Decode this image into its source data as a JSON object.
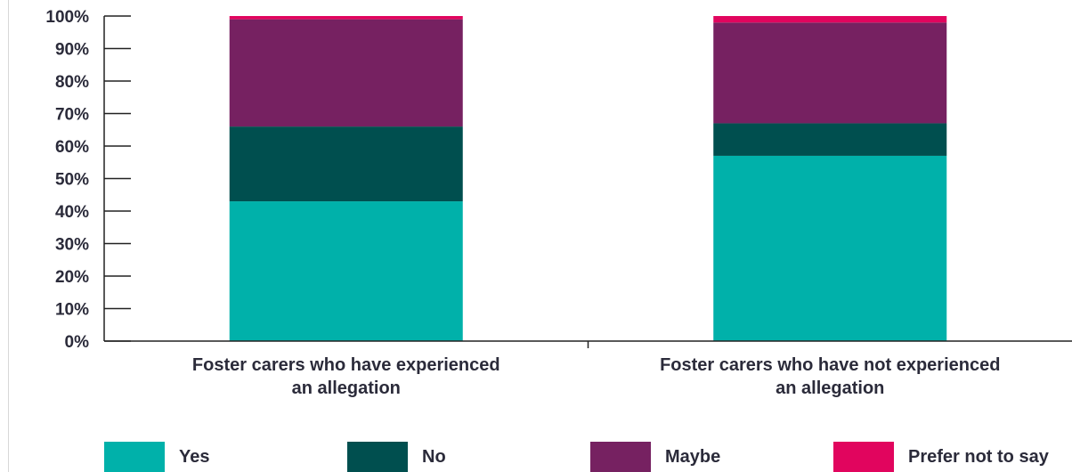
{
  "chart_data": {
    "type": "bar",
    "stacked": true,
    "categories": [
      [
        "Foster carers who have experienced",
        "an allegation"
      ],
      [
        "Foster carers who have not experienced",
        "an allegation"
      ]
    ],
    "series": [
      {
        "name": "Yes",
        "color": "#00b1aa",
        "values": [
          43,
          57
        ]
      },
      {
        "name": "No",
        "color": "#004f4f",
        "values": [
          23,
          10
        ]
      },
      {
        "name": "Maybe",
        "color": "#762161",
        "values": [
          33,
          31
        ]
      },
      {
        "name": "Prefer not to say",
        "color": "#e1055e",
        "values": [
          1,
          2
        ]
      }
    ],
    "yticks": [
      "0%",
      "10%",
      "20%",
      "30%",
      "40%",
      "50%",
      "60%",
      "70%",
      "80%",
      "90%",
      "100%"
    ],
    "ylim": [
      0,
      100
    ],
    "grid": false,
    "legend_position": "bottom"
  }
}
